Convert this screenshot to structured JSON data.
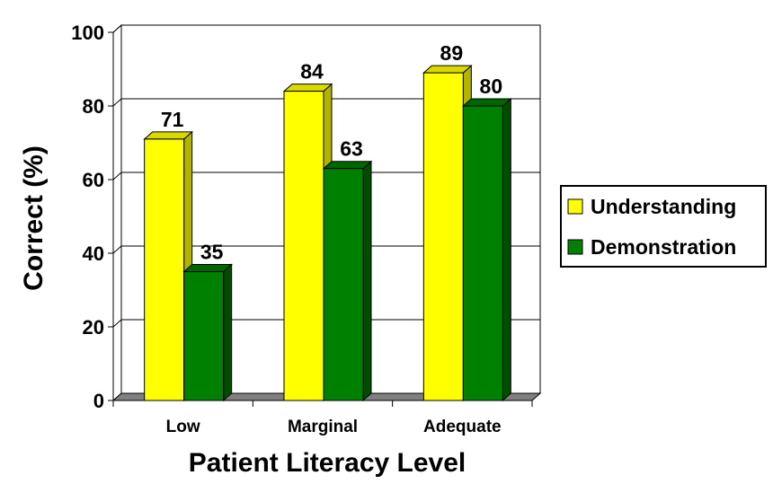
{
  "chart_data": {
    "type": "bar",
    "categories": [
      "Low",
      "Marginal",
      "Adequate"
    ],
    "series": [
      {
        "name": "Understanding",
        "values": [
          71,
          84,
          89
        ],
        "color": "#ffff00",
        "side_color": "#b3b300",
        "top_color": "#d9d900"
      },
      {
        "name": "Demonstration",
        "values": [
          35,
          63,
          80
        ],
        "color": "#008000",
        "side_color": "#004d00",
        "top_color": "#006600"
      }
    ],
    "xlabel": "Patient Literacy Level",
    "ylabel": "Correct (%)",
    "ylim": [
      0,
      100
    ],
    "yticks": [
      0,
      20,
      40,
      60,
      80,
      100
    ],
    "grid": true,
    "legend": "right"
  }
}
